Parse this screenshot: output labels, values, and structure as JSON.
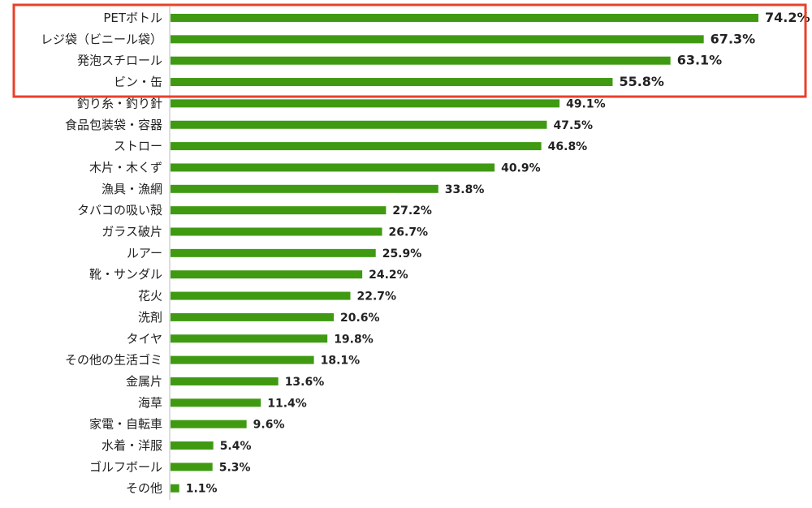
{
  "chart_data": {
    "type": "bar",
    "orientation": "horizontal",
    "title": "",
    "xlabel": "",
    "ylabel": "",
    "xlim": [
      0,
      80
    ],
    "grid": false,
    "unit": "%",
    "categories": [
      "PETボトル",
      "レジ袋（ビニール袋）",
      "発泡スチロール",
      "ビン・缶",
      "釣り糸・釣り針",
      "食品包装袋・容器",
      "ストロー",
      "木片・木くず",
      "漁具・漁網",
      "タバコの吸い殻",
      "ガラス破片",
      "ルアー",
      "靴・サンダル",
      "花火",
      "洗剤",
      "タイヤ",
      "その他の生活ゴミ",
      "金属片",
      "海草",
      "家電・自転車",
      "水着・洋服",
      "ゴルフボール",
      "その他"
    ],
    "values": [
      74.2,
      67.3,
      63.1,
      55.8,
      49.1,
      47.5,
      46.8,
      40.9,
      33.8,
      27.2,
      26.7,
      25.9,
      24.2,
      22.7,
      20.6,
      19.8,
      18.1,
      13.6,
      11.4,
      9.6,
      5.4,
      5.3,
      1.1
    ],
    "value_labels": [
      "74.2%",
      "67.3%",
      "63.1%",
      "55.8%",
      "49.1%",
      "47.5%",
      "46.8%",
      "40.9%",
      "33.8%",
      "27.2%",
      "26.7%",
      "25.9%",
      "24.2%",
      "22.7%",
      "20.6%",
      "19.8%",
      "18.1%",
      "13.6%",
      "11.4%",
      "9.6%",
      "5.4%",
      "5.3%",
      "1.1%"
    ],
    "highlighted_categories": [
      "PETボトル",
      "レジ袋（ビニール袋）",
      "発泡スチロール",
      "ビン・缶"
    ],
    "bar_color": "#3f9a12",
    "highlight_box_color": "#e8412a",
    "axis_color": "#bbbbbb"
  }
}
